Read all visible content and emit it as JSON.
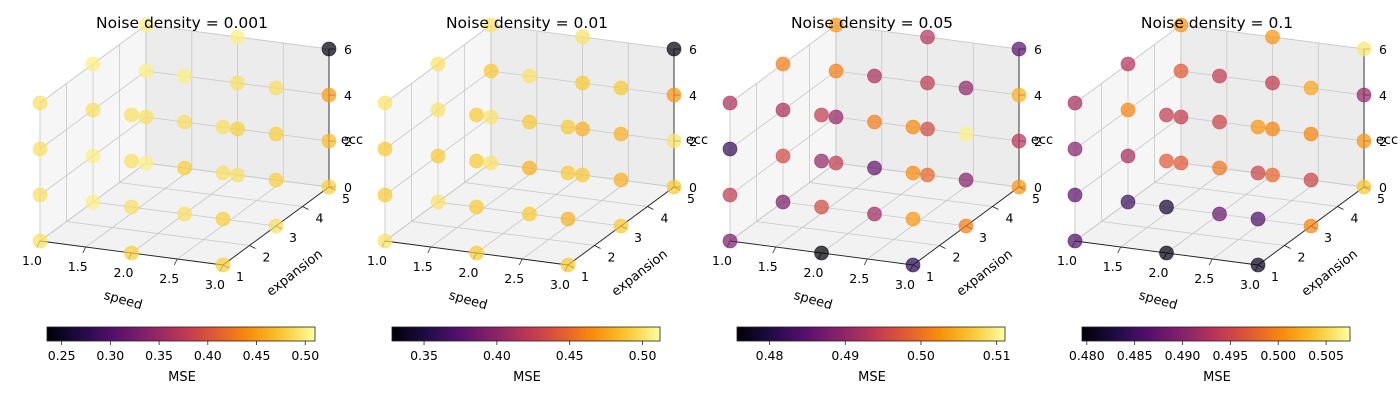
{
  "colormap": "inferno",
  "chart_data": [
    {
      "type": "scatter3d",
      "title": "Noise density = 0.001",
      "xlabel": "speed",
      "ylabel": "expansion",
      "zlabel": "ecc",
      "xlim": [
        1,
        3
      ],
      "ylim": [
        1,
        5
      ],
      "zlim": [
        0,
        6
      ],
      "xticks": [
        "1.0",
        "1.5",
        "2.0",
        "2.5",
        "3.0"
      ],
      "yticks": [
        "1",
        "2",
        "3",
        "4",
        "5"
      ],
      "zticks": [
        "0",
        "2",
        "4",
        "6"
      ],
      "colorbar": {
        "label": "MSE",
        "min": 0.235,
        "max": 0.51,
        "ticks": [
          "0.25",
          "0.30",
          "0.35",
          "0.40",
          "0.45",
          "0.50"
        ]
      },
      "points": [
        {
          "x": 1.0,
          "y": 1,
          "z": 0,
          "v": 0.49
        },
        {
          "x": 1.0,
          "y": 1,
          "z": 2,
          "v": 0.49
        },
        {
          "x": 1.0,
          "y": 1,
          "z": 4,
          "v": 0.49
        },
        {
          "x": 1.0,
          "y": 1,
          "z": 6,
          "v": 0.49
        },
        {
          "x": 1.0,
          "y": 3,
          "z": 0,
          "v": 0.5
        },
        {
          "x": 1.0,
          "y": 3,
          "z": 2,
          "v": 0.5
        },
        {
          "x": 1.0,
          "y": 3,
          "z": 4,
          "v": 0.49
        },
        {
          "x": 1.0,
          "y": 3,
          "z": 6,
          "v": 0.5
        },
        {
          "x": 1.0,
          "y": 5,
          "z": 0,
          "v": 0.5
        },
        {
          "x": 1.0,
          "y": 5,
          "z": 2,
          "v": 0.49
        },
        {
          "x": 1.0,
          "y": 5,
          "z": 4,
          "v": 0.5
        },
        {
          "x": 1.0,
          "y": 5,
          "z": 6,
          "v": 0.5
        },
        {
          "x": 2.0,
          "y": 1,
          "z": 0,
          "v": 0.48
        },
        {
          "x": 2.0,
          "y": 1,
          "z": 2,
          "v": 0.49
        },
        {
          "x": 2.0,
          "y": 1,
          "z": 4,
          "v": 0.49
        },
        {
          "x": 2.0,
          "y": 1,
          "z": 6,
          "v": 0.49
        },
        {
          "x": 2.0,
          "y": 3,
          "z": 0,
          "v": 0.49
        },
        {
          "x": 2.0,
          "y": 3,
          "z": 2,
          "v": 0.48
        },
        {
          "x": 2.0,
          "y": 3,
          "z": 4,
          "v": 0.49
        },
        {
          "x": 2.0,
          "y": 3,
          "z": 6,
          "v": 0.5
        },
        {
          "x": 2.0,
          "y": 5,
          "z": 0,
          "v": 0.49
        },
        {
          "x": 2.0,
          "y": 5,
          "z": 2,
          "v": 0.48
        },
        {
          "x": 2.0,
          "y": 5,
          "z": 4,
          "v": 0.49
        },
        {
          "x": 2.0,
          "y": 5,
          "z": 6,
          "v": 0.5
        },
        {
          "x": 3.0,
          "y": 1,
          "z": 0,
          "v": 0.48
        },
        {
          "x": 3.0,
          "y": 1,
          "z": 2,
          "v": 0.48
        },
        {
          "x": 3.0,
          "y": 1,
          "z": 4,
          "v": 0.49
        },
        {
          "x": 3.0,
          "y": 1,
          "z": 6,
          "v": 0.49
        },
        {
          "x": 3.0,
          "y": 3,
          "z": 0,
          "v": 0.49
        },
        {
          "x": 3.0,
          "y": 3,
          "z": 2,
          "v": 0.48
        },
        {
          "x": 3.0,
          "y": 3,
          "z": 4,
          "v": 0.48
        },
        {
          "x": 3.0,
          "y": 3,
          "z": 6,
          "v": 0.49
        },
        {
          "x": 3.0,
          "y": 5,
          "z": 0,
          "v": 0.48
        },
        {
          "x": 3.0,
          "y": 5,
          "z": 2,
          "v": 0.47
        },
        {
          "x": 3.0,
          "y": 5,
          "z": 4,
          "v": 0.45
        },
        {
          "x": 3.0,
          "y": 5,
          "z": 6,
          "v": 0.24
        }
      ]
    },
    {
      "type": "scatter3d",
      "title": "Noise density = 0.01",
      "xlabel": "speed",
      "ylabel": "expansion",
      "zlabel": "ecc",
      "xlim": [
        1,
        3
      ],
      "ylim": [
        1,
        5
      ],
      "zlim": [
        0,
        6
      ],
      "xticks": [
        "1.0",
        "1.5",
        "2.0",
        "2.5",
        "3.0"
      ],
      "yticks": [
        "1",
        "2",
        "3",
        "4",
        "5"
      ],
      "zticks": [
        "0",
        "2",
        "4",
        "6"
      ],
      "colorbar": {
        "label": "MSE",
        "min": 0.328,
        "max": 0.512,
        "ticks": [
          "0.35",
          "0.40",
          "0.45",
          "0.50"
        ]
      },
      "points": [
        {
          "x": 1.0,
          "y": 1,
          "z": 0,
          "v": 0.5
        },
        {
          "x": 1.0,
          "y": 1,
          "z": 2,
          "v": 0.49
        },
        {
          "x": 1.0,
          "y": 1,
          "z": 4,
          "v": 0.49
        },
        {
          "x": 1.0,
          "y": 1,
          "z": 6,
          "v": 0.5
        },
        {
          "x": 1.0,
          "y": 3,
          "z": 0,
          "v": 0.5
        },
        {
          "x": 1.0,
          "y": 3,
          "z": 2,
          "v": 0.49
        },
        {
          "x": 1.0,
          "y": 3,
          "z": 4,
          "v": 0.5
        },
        {
          "x": 1.0,
          "y": 3,
          "z": 6,
          "v": 0.5
        },
        {
          "x": 1.0,
          "y": 5,
          "z": 0,
          "v": 0.5
        },
        {
          "x": 1.0,
          "y": 5,
          "z": 2,
          "v": 0.5
        },
        {
          "x": 1.0,
          "y": 5,
          "z": 4,
          "v": 0.49
        },
        {
          "x": 1.0,
          "y": 5,
          "z": 6,
          "v": 0.5
        },
        {
          "x": 2.0,
          "y": 1,
          "z": 0,
          "v": 0.49
        },
        {
          "x": 2.0,
          "y": 1,
          "z": 2,
          "v": 0.49
        },
        {
          "x": 2.0,
          "y": 1,
          "z": 4,
          "v": 0.49
        },
        {
          "x": 2.0,
          "y": 1,
          "z": 6,
          "v": 0.49
        },
        {
          "x": 2.0,
          "y": 3,
          "z": 0,
          "v": 0.49
        },
        {
          "x": 2.0,
          "y": 3,
          "z": 2,
          "v": 0.48
        },
        {
          "x": 2.0,
          "y": 3,
          "z": 4,
          "v": 0.49
        },
        {
          "x": 2.0,
          "y": 3,
          "z": 6,
          "v": 0.5
        },
        {
          "x": 2.0,
          "y": 5,
          "z": 0,
          "v": 0.49
        },
        {
          "x": 2.0,
          "y": 5,
          "z": 2,
          "v": 0.48
        },
        {
          "x": 2.0,
          "y": 5,
          "z": 4,
          "v": 0.49
        },
        {
          "x": 2.0,
          "y": 5,
          "z": 6,
          "v": 0.5
        },
        {
          "x": 3.0,
          "y": 1,
          "z": 0,
          "v": 0.49
        },
        {
          "x": 3.0,
          "y": 1,
          "z": 2,
          "v": 0.48
        },
        {
          "x": 3.0,
          "y": 1,
          "z": 4,
          "v": 0.49
        },
        {
          "x": 3.0,
          "y": 1,
          "z": 6,
          "v": 0.49
        },
        {
          "x": 3.0,
          "y": 3,
          "z": 0,
          "v": 0.49
        },
        {
          "x": 3.0,
          "y": 3,
          "z": 2,
          "v": 0.48
        },
        {
          "x": 3.0,
          "y": 3,
          "z": 4,
          "v": 0.48
        },
        {
          "x": 3.0,
          "y": 3,
          "z": 6,
          "v": 0.49
        },
        {
          "x": 3.0,
          "y": 5,
          "z": 0,
          "v": 0.49
        },
        {
          "x": 3.0,
          "y": 5,
          "z": 2,
          "v": 0.5
        },
        {
          "x": 3.0,
          "y": 5,
          "z": 4,
          "v": 0.47
        },
        {
          "x": 3.0,
          "y": 5,
          "z": 6,
          "v": 0.33
        }
      ]
    },
    {
      "type": "scatter3d",
      "title": "Noise density = 0.05",
      "xlabel": "speed",
      "ylabel": "expansion",
      "zlabel": "ecc",
      "xlim": [
        1,
        3
      ],
      "ylim": [
        1,
        5
      ],
      "zlim": [
        0,
        6
      ],
      "xticks": [
        "1.0",
        "1.5",
        "2.0",
        "2.5",
        "3.0"
      ],
      "yticks": [
        "1",
        "2",
        "3",
        "4",
        "5"
      ],
      "zticks": [
        "0",
        "2",
        "4",
        "6"
      ],
      "colorbar": {
        "label": "MSE",
        "min": 0.4757,
        "max": 0.5111,
        "ticks": [
          "0.48",
          "0.49",
          "0.50",
          "0.51"
        ]
      },
      "points": [
        {
          "x": 1.0,
          "y": 1,
          "z": 0,
          "v": 0.488
        },
        {
          "x": 1.0,
          "y": 1,
          "z": 2,
          "v": 0.494
        },
        {
          "x": 1.0,
          "y": 1,
          "z": 4,
          "v": 0.482
        },
        {
          "x": 1.0,
          "y": 1,
          "z": 6,
          "v": 0.492
        },
        {
          "x": 1.0,
          "y": 3,
          "z": 0,
          "v": 0.488
        },
        {
          "x": 1.0,
          "y": 3,
          "z": 2,
          "v": 0.496
        },
        {
          "x": 1.0,
          "y": 3,
          "z": 4,
          "v": 0.492
        },
        {
          "x": 1.0,
          "y": 3,
          "z": 6,
          "v": 0.501
        },
        {
          "x": 1.0,
          "y": 5,
          "z": 0,
          "v": 0.494
        },
        {
          "x": 1.0,
          "y": 5,
          "z": 2,
          "v": 0.49
        },
        {
          "x": 1.0,
          "y": 5,
          "z": 4,
          "v": 0.501
        },
        {
          "x": 1.0,
          "y": 5,
          "z": 6,
          "v": 0.503
        },
        {
          "x": 2.0,
          "y": 1,
          "z": 0,
          "v": 0.476
        },
        {
          "x": 2.0,
          "y": 1,
          "z": 2,
          "v": 0.496
        },
        {
          "x": 2.0,
          "y": 1,
          "z": 4,
          "v": 0.49
        },
        {
          "x": 2.0,
          "y": 1,
          "z": 6,
          "v": 0.494
        },
        {
          "x": 2.0,
          "y": 3,
          "z": 0,
          "v": 0.491
        },
        {
          "x": 2.0,
          "y": 3,
          "z": 2,
          "v": 0.486
        },
        {
          "x": 2.0,
          "y": 3,
          "z": 4,
          "v": 0.501
        },
        {
          "x": 2.0,
          "y": 3,
          "z": 6,
          "v": 0.492
        },
        {
          "x": 2.0,
          "y": 5,
          "z": 0,
          "v": 0.499
        },
        {
          "x": 2.0,
          "y": 5,
          "z": 2,
          "v": 0.496
        },
        {
          "x": 2.0,
          "y": 5,
          "z": 4,
          "v": 0.494
        },
        {
          "x": 2.0,
          "y": 5,
          "z": 6,
          "v": 0.493
        },
        {
          "x": 3.0,
          "y": 1,
          "z": 0,
          "v": 0.481
        },
        {
          "x": 3.0,
          "y": 1,
          "z": 2,
          "v": 0.503
        },
        {
          "x": 3.0,
          "y": 1,
          "z": 4,
          "v": 0.502
        },
        {
          "x": 3.0,
          "y": 1,
          "z": 6,
          "v": 0.502
        },
        {
          "x": 3.0,
          "y": 3,
          "z": 0,
          "v": 0.501
        },
        {
          "x": 3.0,
          "y": 3,
          "z": 2,
          "v": 0.489
        },
        {
          "x": 3.0,
          "y": 3,
          "z": 4,
          "v": 0.51
        },
        {
          "x": 3.0,
          "y": 3,
          "z": 6,
          "v": 0.49
        },
        {
          "x": 3.0,
          "y": 5,
          "z": 0,
          "v": 0.503
        },
        {
          "x": 3.0,
          "y": 5,
          "z": 2,
          "v": 0.493
        },
        {
          "x": 3.0,
          "y": 5,
          "z": 4,
          "v": 0.505
        },
        {
          "x": 3.0,
          "y": 5,
          "z": 6,
          "v": 0.485
        }
      ]
    },
    {
      "type": "scatter3d",
      "title": "Noise density = 0.1",
      "xlabel": "speed",
      "ylabel": "expansion",
      "zlabel": "ecc",
      "xlim": [
        1,
        3
      ],
      "ylim": [
        1,
        5
      ],
      "zlim": [
        0,
        6
      ],
      "xticks": [
        "1.0",
        "1.5",
        "2.0",
        "2.5",
        "3.0"
      ],
      "yticks": [
        "1",
        "2",
        "3",
        "4",
        "5"
      ],
      "zticks": [
        "0",
        "2",
        "4",
        "6"
      ],
      "colorbar": {
        "label": "MSE",
        "min": 0.4795,
        "max": 0.5075,
        "ticks": [
          "0.480",
          "0.485",
          "0.490",
          "0.495",
          "0.500",
          "0.505"
        ]
      },
      "points": [
        {
          "x": 1.0,
          "y": 1,
          "z": 0,
          "v": 0.486
        },
        {
          "x": 1.0,
          "y": 1,
          "z": 2,
          "v": 0.487
        },
        {
          "x": 1.0,
          "y": 1,
          "z": 4,
          "v": 0.49
        },
        {
          "x": 1.0,
          "y": 1,
          "z": 6,
          "v": 0.492
        },
        {
          "x": 1.0,
          "y": 3,
          "z": 0,
          "v": 0.485
        },
        {
          "x": 1.0,
          "y": 3,
          "z": 2,
          "v": 0.492
        },
        {
          "x": 1.0,
          "y": 3,
          "z": 4,
          "v": 0.5
        },
        {
          "x": 1.0,
          "y": 3,
          "z": 6,
          "v": 0.493
        },
        {
          "x": 1.0,
          "y": 5,
          "z": 0,
          "v": 0.497
        },
        {
          "x": 1.0,
          "y": 5,
          "z": 2,
          "v": 0.494
        },
        {
          "x": 1.0,
          "y": 5,
          "z": 4,
          "v": 0.497
        },
        {
          "x": 1.0,
          "y": 5,
          "z": 6,
          "v": 0.501
        },
        {
          "x": 2.0,
          "y": 1,
          "z": 0,
          "v": 0.48
        },
        {
          "x": 2.0,
          "y": 1,
          "z": 2,
          "v": 0.482
        },
        {
          "x": 2.0,
          "y": 1,
          "z": 4,
          "v": 0.497
        },
        {
          "x": 2.0,
          "y": 1,
          "z": 6,
          "v": 0.494
        },
        {
          "x": 2.0,
          "y": 3,
          "z": 0,
          "v": 0.488
        },
        {
          "x": 2.0,
          "y": 3,
          "z": 2,
          "v": 0.499
        },
        {
          "x": 2.0,
          "y": 3,
          "z": 4,
          "v": 0.495
        },
        {
          "x": 2.0,
          "y": 3,
          "z": 6,
          "v": 0.494
        },
        {
          "x": 2.0,
          "y": 5,
          "z": 0,
          "v": 0.498
        },
        {
          "x": 2.0,
          "y": 5,
          "z": 2,
          "v": 0.5
        },
        {
          "x": 2.0,
          "y": 5,
          "z": 4,
          "v": 0.494
        },
        {
          "x": 2.0,
          "y": 5,
          "z": 6,
          "v": 0.501
        },
        {
          "x": 3.0,
          "y": 1,
          "z": 0,
          "v": 0.481
        },
        {
          "x": 3.0,
          "y": 1,
          "z": 2,
          "v": 0.486
        },
        {
          "x": 3.0,
          "y": 1,
          "z": 4,
          "v": 0.495
        },
        {
          "x": 3.0,
          "y": 1,
          "z": 6,
          "v": 0.501
        },
        {
          "x": 3.0,
          "y": 3,
          "z": 0,
          "v": 0.5
        },
        {
          "x": 3.0,
          "y": 3,
          "z": 2,
          "v": 0.495
        },
        {
          "x": 3.0,
          "y": 3,
          "z": 4,
          "v": 0.5
        },
        {
          "x": 3.0,
          "y": 3,
          "z": 6,
          "v": 0.502
        },
        {
          "x": 3.0,
          "y": 5,
          "z": 0,
          "v": 0.504
        },
        {
          "x": 3.0,
          "y": 5,
          "z": 2,
          "v": 0.501
        },
        {
          "x": 3.0,
          "y": 5,
          "z": 4,
          "v": 0.491
        },
        {
          "x": 3.0,
          "y": 5,
          "z": 6,
          "v": 0.506
        }
      ]
    }
  ]
}
